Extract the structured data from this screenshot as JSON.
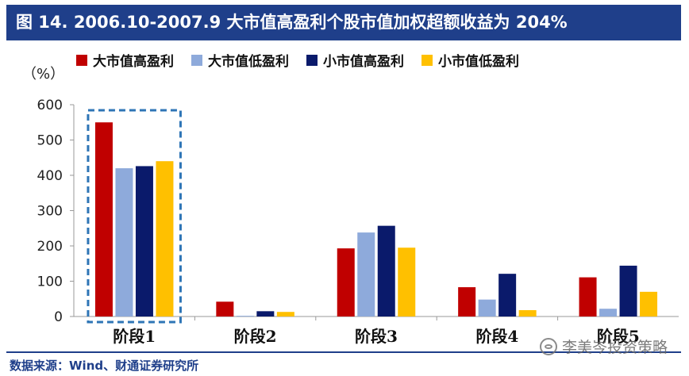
{
  "header": {
    "title": "图 14. 2006.10-2007.9  大市值高盈利个股市值加权超额收益为 204%"
  },
  "source": "数据来源：Wind、财通证券研究所",
  "watermark": "李美岑投资策略",
  "colors": {
    "title_bg": "#1f3f8a",
    "series": [
      "#c00000",
      "#8eaadb",
      "#0a1a6b",
      "#ffc000"
    ],
    "highlight_box": "#2e75b6"
  },
  "chart_data": {
    "type": "bar",
    "title": "",
    "xlabel": "",
    "ylabel": "（%）",
    "ylim": [
      0,
      600
    ],
    "yticks": [
      0,
      100,
      200,
      300,
      400,
      500,
      600
    ],
    "categories": [
      "阶段1",
      "阶段2",
      "阶段3",
      "阶段4",
      "阶段5"
    ],
    "series": [
      {
        "name": "大市值高盈利",
        "values": [
          550,
          42,
          193,
          83,
          111
        ]
      },
      {
        "name": "大市值低盈利",
        "values": [
          420,
          2,
          238,
          48,
          22
        ]
      },
      {
        "name": "小市值高盈利",
        "values": [
          426,
          15,
          257,
          121,
          144
        ]
      },
      {
        "name": "小市值低盈利",
        "values": [
          440,
          13,
          195,
          18,
          70
        ]
      }
    ],
    "highlighted_category": "阶段1",
    "legend_position": "top"
  }
}
